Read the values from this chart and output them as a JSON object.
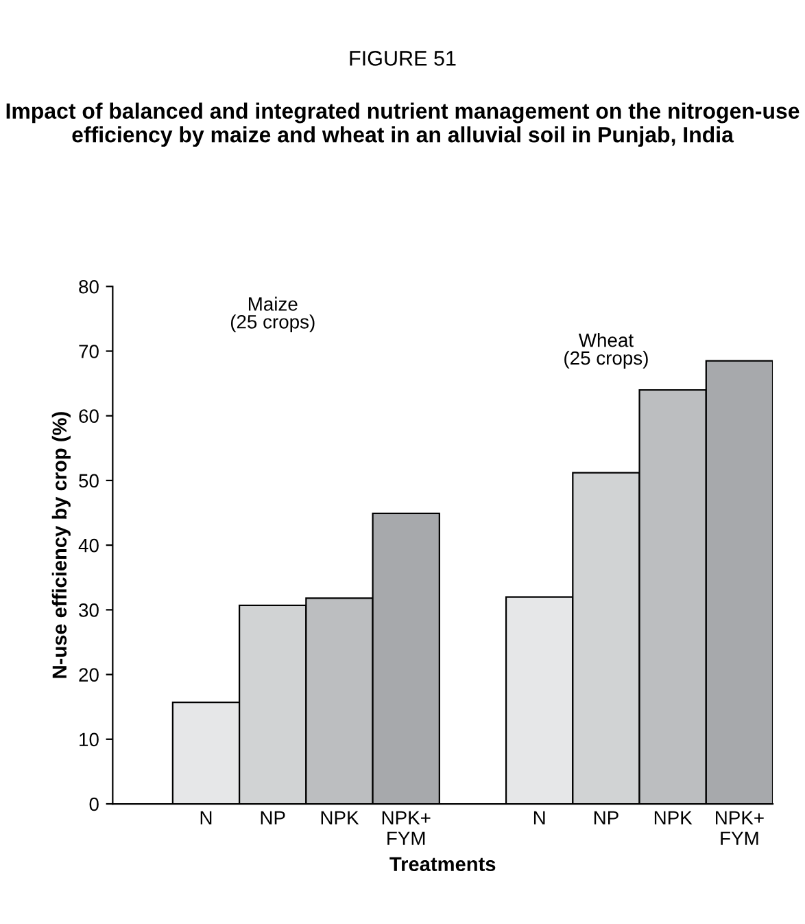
{
  "chart_data": {
    "type": "bar",
    "title": "FIGURE 51",
    "subtitle": "Impact of balanced and integrated nutrient management on the nitrogen-use efficiency by maize and wheat in an alluvial soil in Punjab, India",
    "xlabel": "Treatments",
    "ylabel": "N-use efficiency by crop (%)",
    "categories": [
      "N",
      "NP",
      "NPK",
      "NPK+\nFYM",
      null,
      "N",
      "NP",
      "NPK",
      "NPK+\nFYM"
    ],
    "values": [
      15.7,
      30.7,
      31.8,
      44.9,
      null,
      32.0,
      51.2,
      64.0,
      68.5
    ],
    "colors": [
      "#e6e7e8",
      "#d1d3d4",
      "#bcbec0",
      "#a7a9ac",
      "#ffffff",
      "#e6e7e8",
      "#d1d3d4",
      "#bcbec0",
      "#a7a9ac"
    ],
    "ylim": [
      0,
      80
    ],
    "yticks": [
      0,
      10,
      20,
      30,
      40,
      50,
      60,
      70,
      80
    ],
    "grid": false,
    "annotations": [
      "Maize\n(25 crops)",
      "Wheat\n(25 crops)"
    ]
  }
}
